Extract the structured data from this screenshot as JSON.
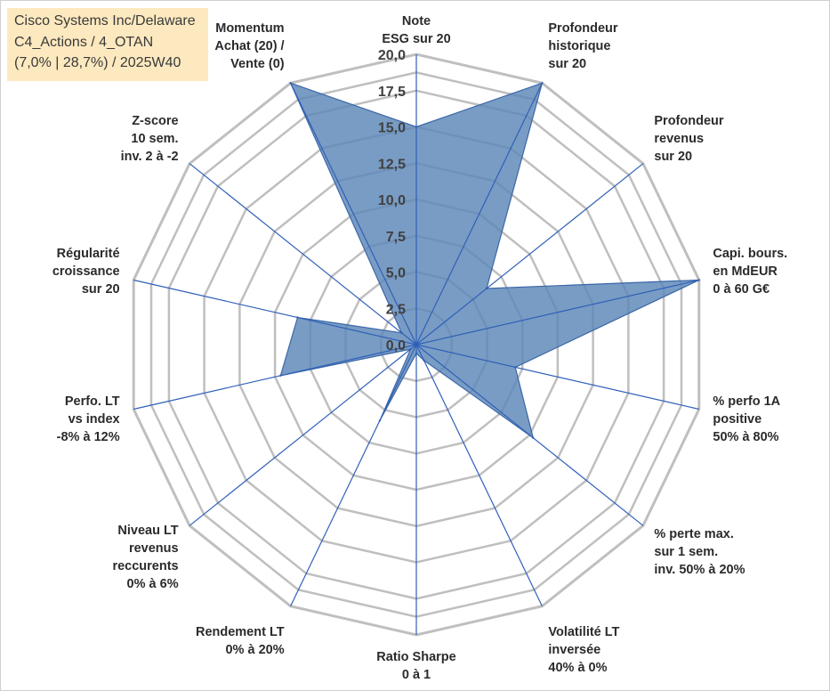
{
  "title_box": {
    "line1": "Cisco Systems Inc/Delaware",
    "line2": "C4_Actions / 4_OTAN",
    "line3": "(7,0% | 28,7%) / 2025W40"
  },
  "colors": {
    "area_fill": "#5b86b7",
    "area_stroke": "#3a67a8",
    "spoke": "#3060b8",
    "grid": "#bfbfbf",
    "title_bg": "#fde9bf"
  },
  "chart_data": {
    "type": "radar",
    "title": "",
    "rmin": 0,
    "rmax": 20,
    "ticks": [
      "0,0",
      "2,5",
      "5,0",
      "7,5",
      "10,0",
      "12,5",
      "15,0",
      "17,5",
      "20,0"
    ],
    "categories": [
      [
        "Note",
        "ESG sur 20"
      ],
      [
        "Profondeur",
        "historique",
        "sur 20"
      ],
      [
        "Profondeur",
        "revenus",
        "sur 20"
      ],
      [
        "Capi. bours.",
        "en MdEUR",
        "0 à 60 G€"
      ],
      [
        "% perfo 1A",
        "positive",
        "50% à 80%"
      ],
      [
        "% perte max.",
        "sur 1 sem.",
        "inv. 50% à 20%"
      ],
      [
        "Volatilité LT",
        "inversée",
        "40% à 0%"
      ],
      [
        "Ratio Sharpe",
        "0 à 1"
      ],
      [
        "Rendement LT",
        "0% à 20%"
      ],
      [
        "Niveau LT",
        "revenus",
        "reccurents",
        "0% à 6%"
      ],
      [
        "Perfo. LT",
        "vs index",
        "-8% à 12%"
      ],
      [
        "Régularité",
        "croissance",
        "sur 20"
      ],
      [
        "Z-score",
        "10 sem.",
        "inv. 2 à -2"
      ],
      [
        "Momentum",
        "Achat (20) /",
        "Vente (0)"
      ]
    ],
    "series": [
      {
        "name": "Cisco Systems Inc/Delaware",
        "values": [
          15.0,
          20.0,
          6.2,
          20.0,
          7.0,
          10.3,
          1.2,
          0.6,
          5.8,
          0.5,
          9.6,
          8.4,
          1.3,
          20.0
        ]
      }
    ]
  }
}
